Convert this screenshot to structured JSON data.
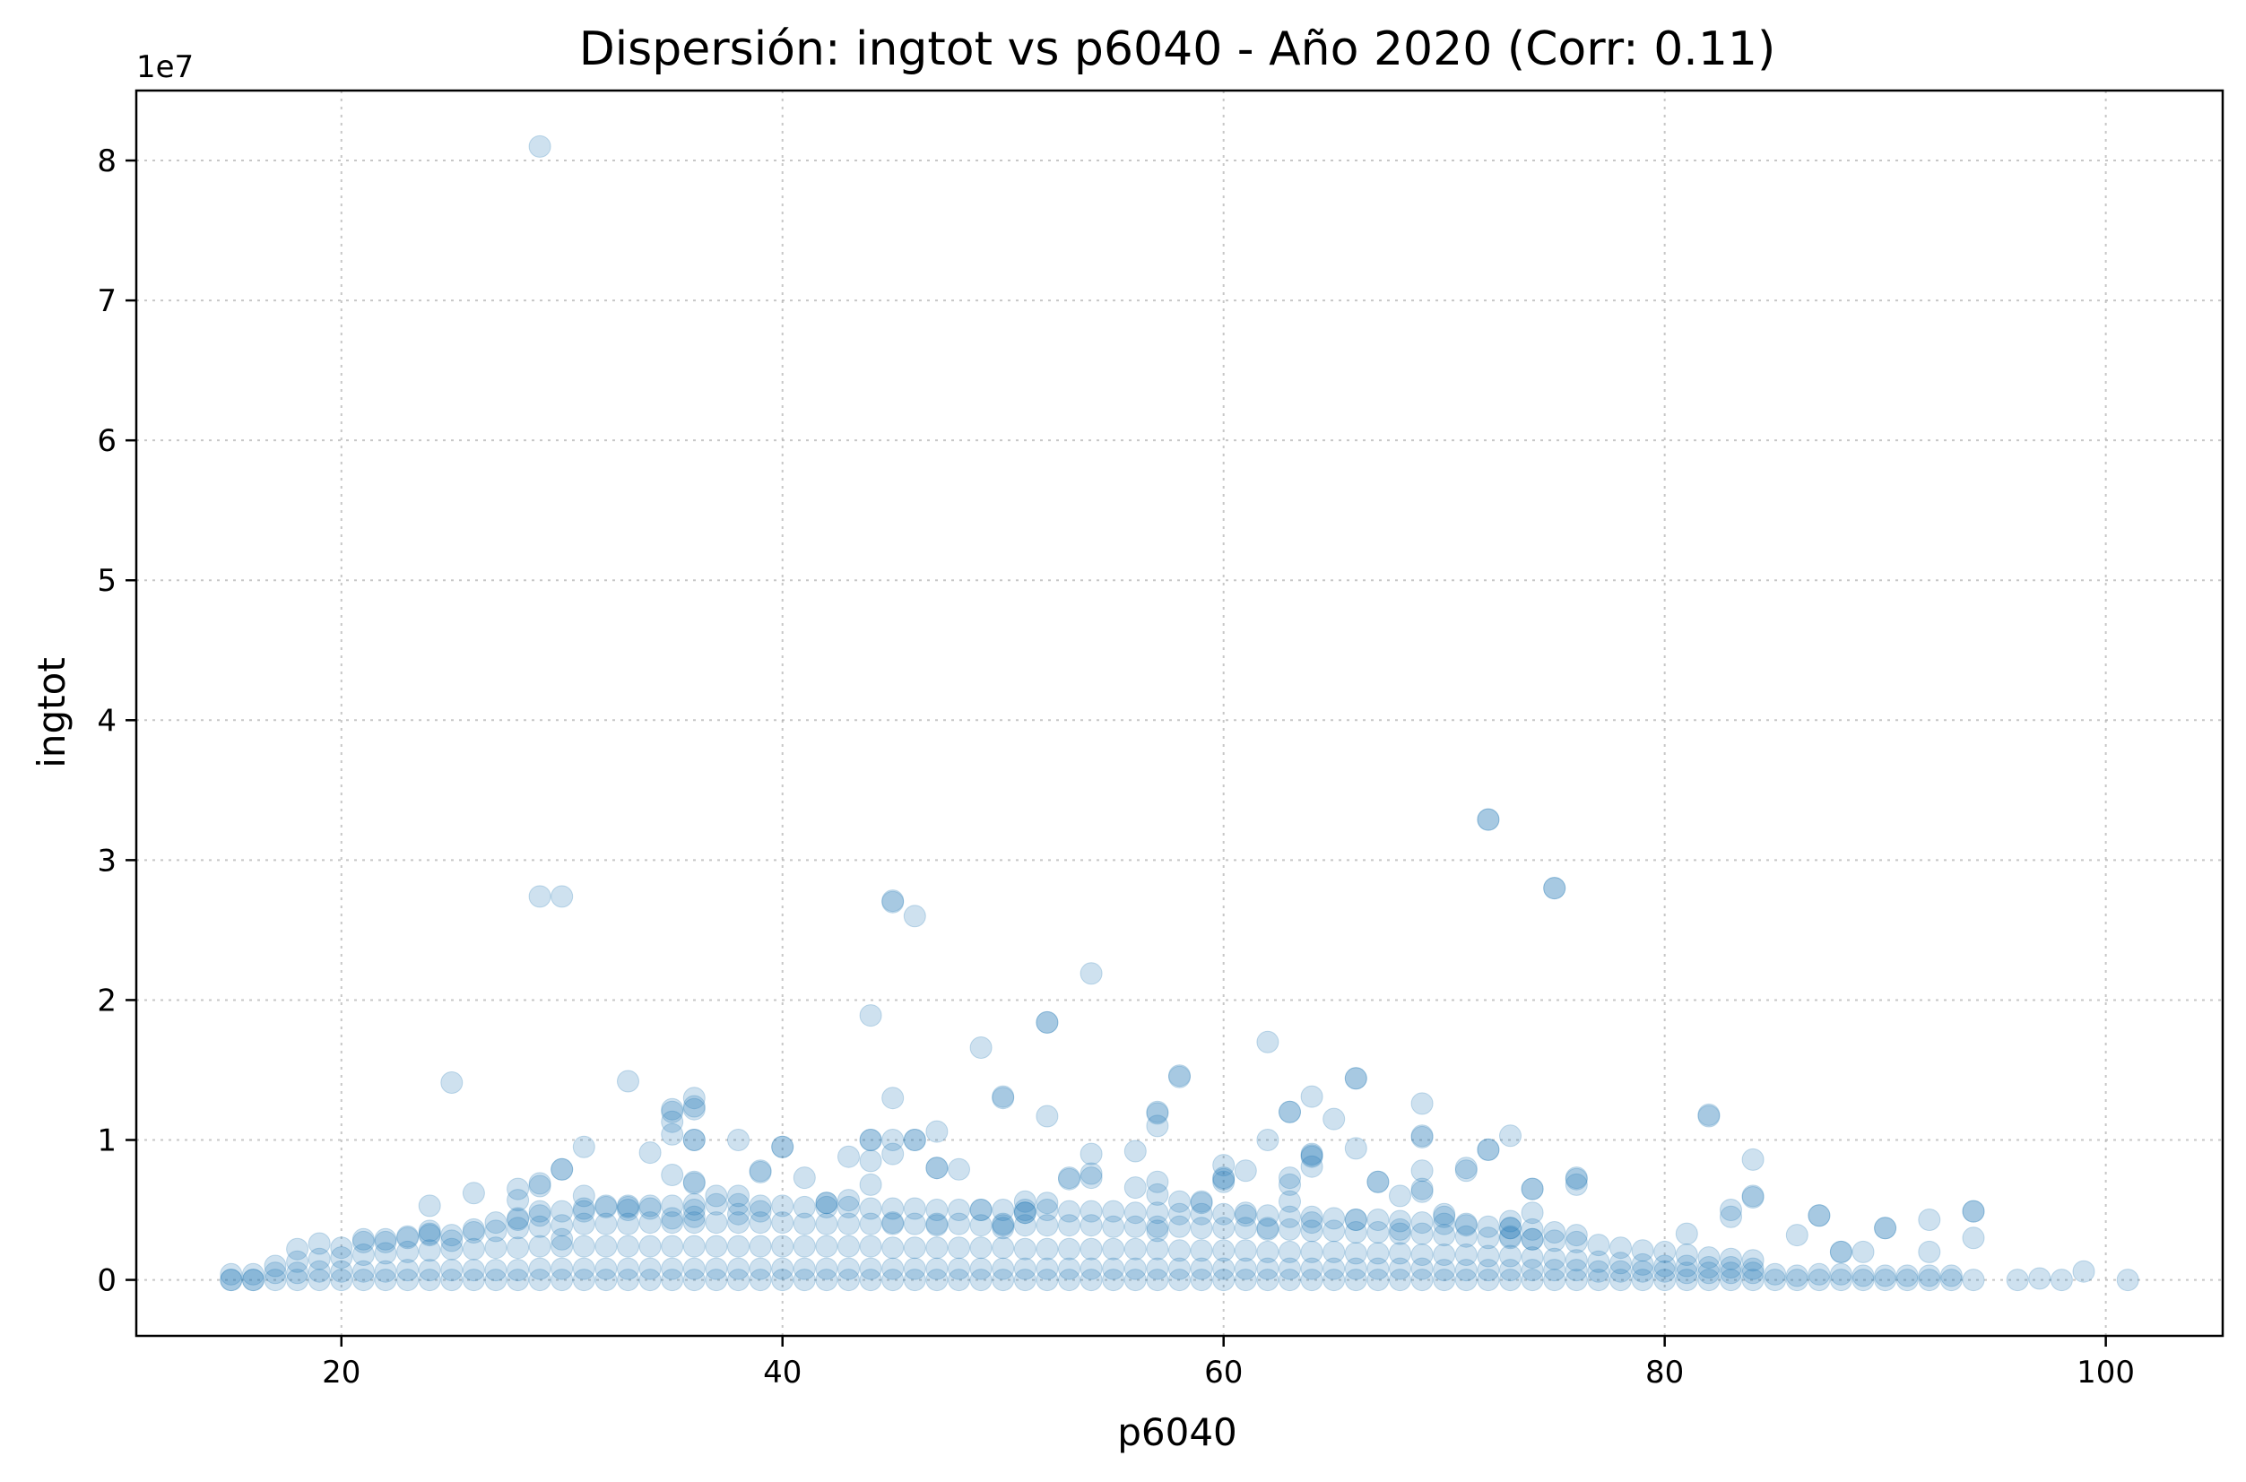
{
  "chart_data": {
    "type": "scatter",
    "title": "Dispersión: ingtot vs p6040 - Año 2020 (Corr: 0.11)",
    "xlabel": "p6040",
    "ylabel": "ingtot",
    "y_offset_text": "1e7",
    "xlim": [
      10.7,
      105.3
    ],
    "ylim": [
      -4000000,
      85000000
    ],
    "xticks": [
      20,
      40,
      60,
      80,
      100
    ],
    "xtick_labels": [
      "20",
      "40",
      "60",
      "80",
      "100"
    ],
    "yticks": [
      0,
      10000000,
      20000000,
      30000000,
      40000000,
      50000000,
      60000000,
      70000000,
      80000000
    ],
    "ytick_labels": [
      "0",
      "1",
      "2",
      "3",
      "4",
      "5",
      "6",
      "7",
      "8"
    ],
    "grid": true,
    "marker_color": "#1f77b4",
    "marker_alpha": 0.22,
    "series": [
      {
        "x": [
          15,
          16,
          17,
          18,
          19,
          20,
          21,
          22,
          23,
          24,
          25,
          26,
          27,
          28,
          29,
          30,
          31,
          32,
          33,
          34,
          35,
          36,
          37,
          38,
          39,
          40,
          41,
          42,
          43,
          44,
          45,
          46,
          47,
          48,
          49,
          50,
          51,
          52,
          53,
          54,
          55,
          56,
          57,
          58,
          59,
          60,
          61,
          62,
          63,
          64,
          65,
          66,
          67,
          68,
          69,
          70,
          71,
          72,
          73,
          74,
          75,
          76,
          77,
          78,
          79,
          80,
          81,
          82,
          83,
          84,
          85,
          86,
          87,
          88,
          89,
          90,
          91,
          92,
          93,
          94,
          96,
          97,
          98,
          99,
          101,
          15,
          16,
          17,
          18,
          19,
          20,
          21,
          22,
          23,
          24,
          25,
          26,
          27,
          28,
          29,
          30,
          31,
          32,
          33,
          34,
          35,
          36,
          37,
          38,
          39,
          40,
          41,
          42,
          43,
          44,
          45,
          46,
          47,
          48,
          49,
          50,
          51,
          52,
          53,
          54,
          55,
          56,
          57,
          58,
          59,
          60,
          61,
          62,
          63,
          64,
          65,
          66,
          67,
          68,
          69,
          70,
          71,
          72,
          73,
          74,
          75,
          76,
          77,
          78,
          79,
          80,
          81,
          82,
          83,
          84,
          85,
          86,
          87,
          88,
          89,
          90,
          91,
          92,
          93,
          15,
          16,
          17,
          18,
          19,
          20,
          21,
          22,
          23,
          24,
          25,
          26,
          27,
          28,
          29,
          30,
          31,
          32,
          33,
          34,
          35,
          36,
          37,
          38,
          39,
          40,
          41,
          42,
          43,
          44,
          45,
          46,
          47,
          48,
          49,
          50,
          51,
          52,
          53,
          54,
          55,
          56,
          57,
          58,
          59,
          60,
          61,
          62,
          63,
          64,
          65,
          66,
          67,
          68,
          69,
          70,
          71,
          72,
          73,
          74,
          75,
          76,
          77,
          78,
          79,
          80,
          81,
          82,
          83,
          84,
          18,
          19,
          20,
          21,
          22,
          23,
          24,
          25,
          26,
          27,
          28,
          29,
          30,
          31,
          32,
          33,
          34,
          35,
          36,
          37,
          38,
          39,
          40,
          41,
          42,
          43,
          44,
          45,
          46,
          47,
          48,
          49,
          50,
          51,
          52,
          53,
          54,
          55,
          56,
          57,
          58,
          59,
          60,
          61,
          62,
          63,
          64,
          65,
          66,
          67,
          68,
          69,
          70,
          71,
          72,
          73,
          74,
          75,
          76,
          77,
          78,
          79,
          80,
          81,
          82,
          83,
          84,
          21,
          22,
          23,
          24,
          25,
          26,
          27,
          28,
          29,
          30,
          31,
          32,
          33,
          34,
          35,
          36,
          37,
          38,
          39,
          40,
          41,
          42,
          43,
          44,
          45,
          46,
          47,
          48,
          49,
          50,
          51,
          52,
          53,
          54,
          55,
          56,
          57,
          58,
          59,
          60,
          61,
          62,
          63,
          64,
          65,
          66,
          67,
          68,
          69,
          70,
          71,
          72,
          73,
          74,
          75,
          76,
          24,
          26,
          28,
          29,
          30,
          31,
          32,
          33,
          34,
          35,
          36,
          37,
          38,
          39,
          40,
          42,
          43,
          44,
          45,
          47,
          49,
          50,
          51,
          52,
          53,
          54,
          56,
          57,
          58,
          59,
          60,
          61,
          63,
          64,
          66,
          67,
          68,
          69,
          70,
          71,
          72,
          73,
          74,
          76,
          81,
          83,
          84,
          86,
          87,
          88,
          89,
          90,
          92,
          94,
          29,
          29,
          30,
          31,
          35,
          35,
          36,
          36,
          36,
          38,
          39,
          40,
          41,
          42,
          44,
          44,
          44,
          45,
          45,
          46,
          47,
          47,
          48,
          50,
          51,
          52,
          53,
          54,
          54,
          56,
          57,
          57,
          58,
          59,
          60,
          60,
          60,
          63,
          63,
          64,
          64,
          64,
          65,
          66,
          67,
          69,
          69,
          69,
          69,
          70,
          71,
          72,
          73,
          74,
          74,
          76,
          76,
          82,
          84,
          84,
          90,
          92,
          94,
          94,
          24,
          28,
          28,
          29,
          30,
          31,
          33,
          34,
          35,
          36,
          38,
          39,
          43,
          45,
          47,
          50,
          51,
          57,
          61,
          62,
          64,
          66,
          68,
          71,
          73,
          74,
          83,
          87,
          88,
          29,
          30,
          25,
          33,
          35,
          36,
          45,
          49,
          50,
          52,
          54,
          57,
          57,
          58,
          62,
          63,
          64,
          66,
          69,
          72,
          73,
          75,
          82,
          44,
          46,
          45,
          52,
          62,
          72,
          75,
          63,
          46,
          35,
          36,
          36,
          36
        ],
        "y": [
          0,
          0,
          0,
          0,
          0,
          0,
          0,
          0,
          0,
          0,
          0,
          0,
          0,
          0,
          0,
          0,
          0,
          0,
          0,
          0,
          0,
          0,
          0,
          0,
          0,
          0,
          0,
          0,
          0,
          0,
          0,
          0,
          0,
          0,
          0,
          0,
          0,
          0,
          0,
          0,
          0,
          0,
          0,
          0,
          0,
          0,
          0,
          0,
          0,
          0,
          0,
          0,
          0,
          0,
          0,
          0,
          0,
          0,
          0,
          0,
          0,
          0,
          0,
          0,
          0,
          0,
          0,
          0,
          0,
          0,
          0,
          0,
          0,
          0,
          0,
          0,
          0,
          0,
          0,
          0,
          0,
          100000,
          0,
          600000,
          0,
          400000,
          400000,
          500000,
          500000,
          600000,
          600000,
          600000,
          600000,
          700000,
          700000,
          700000,
          700000,
          700000,
          700000,
          800000,
          800000,
          800000,
          800000,
          800000,
          800000,
          800000,
          800000,
          800000,
          800000,
          800000,
          800000,
          800000,
          800000,
          800000,
          800000,
          800000,
          800000,
          800000,
          800000,
          800000,
          800000,
          800000,
          800000,
          800000,
          800000,
          800000,
          800000,
          800000,
          800000,
          800000,
          800000,
          800000,
          800000,
          800000,
          800000,
          800000,
          800000,
          800000,
          800000,
          800000,
          700000,
          700000,
          700000,
          700000,
          700000,
          700000,
          700000,
          600000,
          600000,
          600000,
          600000,
          500000,
          500000,
          500000,
          500000,
          400000,
          300000,
          400000,
          400000,
          300000,
          300000,
          300000,
          300000,
          300000,
          0,
          0,
          1000000,
          1300000,
          1500000,
          1600000,
          1800000,
          1900000,
          2000000,
          2100000,
          2200000,
          2200000,
          2300000,
          2300000,
          2400000,
          2400000,
          2400000,
          2400000,
          2400000,
          2400000,
          2400000,
          2400000,
          2400000,
          2400000,
          2400000,
          2400000,
          2400000,
          2400000,
          2400000,
          2400000,
          2300000,
          2300000,
          2300000,
          2300000,
          2300000,
          2300000,
          2200000,
          2200000,
          2200000,
          2200000,
          2200000,
          2200000,
          2200000,
          2100000,
          2100000,
          2100000,
          2100000,
          2000000,
          2000000,
          2000000,
          2000000,
          1900000,
          1900000,
          1900000,
          1800000,
          1800000,
          1800000,
          1700000,
          1700000,
          1600000,
          1500000,
          1400000,
          1300000,
          1200000,
          1100000,
          1000000,
          1000000,
          900000,
          900000,
          800000,
          2200000,
          2600000,
          2300000,
          2700000,
          2700000,
          3000000,
          3300000,
          3200000,
          3400000,
          3500000,
          3700000,
          3800000,
          3900000,
          4000000,
          4000000,
          4000000,
          4100000,
          4100000,
          4100000,
          4100000,
          4100000,
          4100000,
          4100000,
          4000000,
          4000000,
          4000000,
          4000000,
          4000000,
          4000000,
          4000000,
          4000000,
          3900000,
          3900000,
          3900000,
          3900000,
          3900000,
          3900000,
          3800000,
          3800000,
          3800000,
          3800000,
          3700000,
          3700000,
          3700000,
          3600000,
          3600000,
          3500000,
          3500000,
          3400000,
          3400000,
          3300000,
          3300000,
          3200000,
          3100000,
          3000000,
          3000000,
          2900000,
          2800000,
          2700000,
          2500000,
          2300000,
          2100000,
          2000000,
          1800000,
          1600000,
          1500000,
          1400000,
          2900000,
          2900000,
          3100000,
          3200000,
          2800000,
          3600000,
          4100000,
          4300000,
          4600000,
          4900000,
          5100000,
          5200000,
          5200000,
          5300000,
          5300000,
          5400000,
          5400000,
          5400000,
          5300000,
          5300000,
          5200000,
          5200000,
          5200000,
          5100000,
          5100000,
          5100000,
          5000000,
          5000000,
          5000000,
          5000000,
          5000000,
          5000000,
          4900000,
          4900000,
          4900000,
          4800000,
          4800000,
          4700000,
          4700000,
          4700000,
          4600000,
          4600000,
          4500000,
          4500000,
          4400000,
          4300000,
          4300000,
          4200000,
          4100000,
          4000000,
          3900000,
          3800000,
          3700000,
          3600000,
          3400000,
          3200000,
          5300000,
          6200000,
          6500000,
          6900000,
          7900000,
          9500000,
          5300000,
          5000000,
          9100000,
          7500000,
          7000000,
          6000000,
          6000000,
          7800000,
          9500000,
          5500000,
          8800000,
          8500000,
          10000000,
          8000000,
          5000000,
          4000000,
          5600000,
          5500000,
          7200000,
          7300000,
          6600000,
          7000000,
          5600000,
          5600000,
          7000000,
          7800000,
          6800000,
          8800000,
          9400000,
          7000000,
          6000000,
          6500000,
          4500000,
          8000000,
          9300000,
          4200000,
          6500000,
          7300000,
          3300000,
          5000000,
          6000000,
          3200000,
          4600000,
          2000000,
          2000000,
          3700000,
          2000000,
          4900000,
          81000000,
          4900000,
          2900000,
          6000000,
          12000000,
          11300000,
          12200000,
          13000000,
          10000000,
          10000000,
          7700000,
          9500000,
          7300000,
          5500000,
          10000000,
          18900000,
          6800000,
          13000000,
          27000000,
          10000000,
          10600000,
          8000000,
          7900000,
          13000000,
          4800000,
          18400000,
          7300000,
          21900000,
          7600000,
          9200000,
          11000000,
          12000000,
          14600000,
          5500000,
          7200000,
          8200000,
          7300000,
          7300000,
          12000000,
          13100000,
          8100000,
          9000000,
          11500000,
          14400000,
          7000000,
          10300000,
          12600000,
          7800000,
          6300000,
          4700000,
          7800000,
          32900000,
          10300000,
          6500000,
          4800000,
          7200000,
          6800000,
          11800000,
          5900000,
          8600000,
          3700000,
          4300000,
          3000000,
          4900000,
          3500000,
          4400000,
          5700000,
          6700000,
          27400000,
          4900000,
          5300000,
          5100000,
          4400000,
          4500000,
          4700000,
          4900000,
          5700000,
          4100000,
          3900000,
          3700000,
          4800000,
          3500000,
          4800000,
          3700000,
          4100000,
          4300000,
          3600000,
          4000000,
          3100000,
          2900000,
          4500000,
          4600000,
          2000000,
          27400000,
          7900000,
          14100000,
          14200000,
          12200000,
          10000000,
          27100000,
          16600000,
          13100000,
          11700000,
          9000000,
          11900000,
          6100000,
          14500000,
          17000000,
          12000000,
          8900000,
          14400000,
          10200000,
          9300000,
          3700000,
          28000000,
          11700000,
          10000000,
          26000000,
          9000000,
          18400000,
          10000000,
          32900000,
          28000000,
          5600000,
          10000000,
          10400000,
          6900000,
          12400000,
          5000000
        ]
      }
    ]
  }
}
